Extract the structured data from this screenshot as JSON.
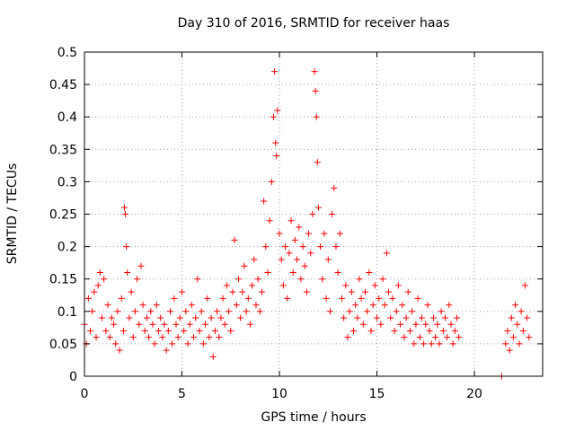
{
  "chart_data": {
    "type": "scatter",
    "title": "Day 310 of 2016, SRMTID for receiver haas",
    "xlabel": "GPS time / hours",
    "ylabel": "SRMTID / TECUs",
    "xlim": [
      0,
      23.5
    ],
    "ylim": [
      0,
      0.5
    ],
    "x_ticks": [
      0,
      5,
      10,
      15,
      20
    ],
    "x_tick_labels": [
      "0",
      "5",
      "10",
      "15",
      "20"
    ],
    "y_ticks": [
      0,
      0.05,
      0.1,
      0.15,
      0.2,
      0.25,
      0.3,
      0.35,
      0.4,
      0.45,
      0.5
    ],
    "y_tick_labels": [
      "0",
      "0.05",
      "0.1",
      "0.15",
      "0.2",
      "0.25",
      "0.3",
      "0.35",
      "0.4",
      "0.45",
      "0.5"
    ],
    "grid": true,
    "marker": "+",
    "marker_color": "#ff0000",
    "series": [
      {
        "name": "SRMTID",
        "points": [
          [
            0.0,
            0.08
          ],
          [
            0.1,
            0.05
          ],
          [
            0.2,
            0.12
          ],
          [
            0.3,
            0.07
          ],
          [
            0.4,
            0.1
          ],
          [
            0.5,
            0.13
          ],
          [
            0.6,
            0.06
          ],
          [
            0.7,
            0.14
          ],
          [
            0.8,
            0.16
          ],
          [
            0.9,
            0.09
          ],
          [
            1.0,
            0.15
          ],
          [
            1.1,
            0.07
          ],
          [
            1.2,
            0.11
          ],
          [
            1.3,
            0.06
          ],
          [
            1.4,
            0.09
          ],
          [
            1.5,
            0.08
          ],
          [
            1.6,
            0.05
          ],
          [
            1.7,
            0.1
          ],
          [
            1.8,
            0.04
          ],
          [
            1.9,
            0.12
          ],
          [
            2.0,
            0.07
          ],
          [
            2.05,
            0.26
          ],
          [
            2.1,
            0.25
          ],
          [
            2.15,
            0.2
          ],
          [
            2.2,
            0.16
          ],
          [
            2.3,
            0.09
          ],
          [
            2.4,
            0.13
          ],
          [
            2.5,
            0.06
          ],
          [
            2.6,
            0.1
          ],
          [
            2.7,
            0.15
          ],
          [
            2.8,
            0.08
          ],
          [
            2.9,
            0.17
          ],
          [
            3.0,
            0.11
          ],
          [
            3.1,
            0.07
          ],
          [
            3.2,
            0.09
          ],
          [
            3.3,
            0.06
          ],
          [
            3.4,
            0.1
          ],
          [
            3.5,
            0.08
          ],
          [
            3.6,
            0.05
          ],
          [
            3.7,
            0.11
          ],
          [
            3.8,
            0.07
          ],
          [
            3.9,
            0.09
          ],
          [
            4.0,
            0.06
          ],
          [
            4.1,
            0.08
          ],
          [
            4.2,
            0.04
          ],
          [
            4.3,
            0.07
          ],
          [
            4.4,
            0.1
          ],
          [
            4.5,
            0.05
          ],
          [
            4.6,
            0.12
          ],
          [
            4.7,
            0.08
          ],
          [
            4.8,
            0.06
          ],
          [
            4.9,
            0.09
          ],
          [
            5.0,
            0.13
          ],
          [
            5.1,
            0.07
          ],
          [
            5.2,
            0.1
          ],
          [
            5.3,
            0.05
          ],
          [
            5.4,
            0.08
          ],
          [
            5.5,
            0.11
          ],
          [
            5.6,
            0.06
          ],
          [
            5.7,
            0.09
          ],
          [
            5.8,
            0.15
          ],
          [
            5.9,
            0.07
          ],
          [
            6.0,
            0.1
          ],
          [
            6.1,
            0.05
          ],
          [
            6.2,
            0.08
          ],
          [
            6.3,
            0.12
          ],
          [
            6.4,
            0.06
          ],
          [
            6.5,
            0.09
          ],
          [
            6.6,
            0.03
          ],
          [
            6.7,
            0.07
          ],
          [
            6.8,
            0.1
          ],
          [
            6.9,
            0.06
          ],
          [
            7.0,
            0.09
          ],
          [
            7.1,
            0.12
          ],
          [
            7.2,
            0.08
          ],
          [
            7.3,
            0.14
          ],
          [
            7.4,
            0.1
          ],
          [
            7.5,
            0.07
          ],
          [
            7.6,
            0.13
          ],
          [
            7.7,
            0.21
          ],
          [
            7.8,
            0.11
          ],
          [
            7.9,
            0.15
          ],
          [
            8.0,
            0.09
          ],
          [
            8.1,
            0.13
          ],
          [
            8.2,
            0.17
          ],
          [
            8.3,
            0.1
          ],
          [
            8.4,
            0.12
          ],
          [
            8.5,
            0.08
          ],
          [
            8.6,
            0.14
          ],
          [
            8.7,
            0.18
          ],
          [
            8.8,
            0.11
          ],
          [
            8.9,
            0.15
          ],
          [
            9.0,
            0.1
          ],
          [
            9.1,
            0.13
          ],
          [
            9.2,
            0.27
          ],
          [
            9.3,
            0.2
          ],
          [
            9.4,
            0.16
          ],
          [
            9.5,
            0.24
          ],
          [
            9.6,
            0.3
          ],
          [
            9.7,
            0.4
          ],
          [
            9.75,
            0.47
          ],
          [
            9.8,
            0.36
          ],
          [
            9.85,
            0.34
          ],
          [
            9.9,
            0.41
          ],
          [
            10.0,
            0.22
          ],
          [
            10.1,
            0.18
          ],
          [
            10.2,
            0.14
          ],
          [
            10.3,
            0.2
          ],
          [
            10.4,
            0.12
          ],
          [
            10.5,
            0.19
          ],
          [
            10.6,
            0.24
          ],
          [
            10.7,
            0.16
          ],
          [
            10.8,
            0.21
          ],
          [
            10.9,
            0.18
          ],
          [
            11.0,
            0.23
          ],
          [
            11.1,
            0.15
          ],
          [
            11.2,
            0.2
          ],
          [
            11.3,
            0.17
          ],
          [
            11.4,
            0.13
          ],
          [
            11.5,
            0.22
          ],
          [
            11.6,
            0.19
          ],
          [
            11.7,
            0.25
          ],
          [
            11.8,
            0.47
          ],
          [
            11.85,
            0.44
          ],
          [
            11.9,
            0.4
          ],
          [
            11.95,
            0.33
          ],
          [
            12.0,
            0.26
          ],
          [
            12.1,
            0.2
          ],
          [
            12.2,
            0.15
          ],
          [
            12.3,
            0.22
          ],
          [
            12.4,
            0.12
          ],
          [
            12.5,
            0.18
          ],
          [
            12.6,
            0.1
          ],
          [
            12.7,
            0.25
          ],
          [
            12.8,
            0.29
          ],
          [
            12.9,
            0.2
          ],
          [
            13.0,
            0.16
          ],
          [
            13.1,
            0.22
          ],
          [
            13.2,
            0.12
          ],
          [
            13.3,
            0.09
          ],
          [
            13.4,
            0.14
          ],
          [
            13.5,
            0.06
          ],
          [
            13.6,
            0.1
          ],
          [
            13.7,
            0.13
          ],
          [
            13.8,
            0.07
          ],
          [
            13.9,
            0.11
          ],
          [
            14.0,
            0.09
          ],
          [
            14.1,
            0.15
          ],
          [
            14.2,
            0.12
          ],
          [
            14.3,
            0.08
          ],
          [
            14.4,
            0.13
          ],
          [
            14.5,
            0.1
          ],
          [
            14.6,
            0.16
          ],
          [
            14.7,
            0.07
          ],
          [
            14.8,
            0.11
          ],
          [
            14.9,
            0.14
          ],
          [
            15.0,
            0.09
          ],
          [
            15.1,
            0.12
          ],
          [
            15.2,
            0.08
          ],
          [
            15.3,
            0.15
          ],
          [
            15.4,
            0.11
          ],
          [
            15.5,
            0.19
          ],
          [
            15.6,
            0.13
          ],
          [
            15.7,
            0.09
          ],
          [
            15.8,
            0.12
          ],
          [
            15.9,
            0.07
          ],
          [
            16.0,
            0.1
          ],
          [
            16.1,
            0.14
          ],
          [
            16.2,
            0.08
          ],
          [
            16.3,
            0.11
          ],
          [
            16.4,
            0.06
          ],
          [
            16.5,
            0.09
          ],
          [
            16.6,
            0.13
          ],
          [
            16.7,
            0.07
          ],
          [
            16.8,
            0.1
          ],
          [
            16.9,
            0.05
          ],
          [
            17.0,
            0.08
          ],
          [
            17.1,
            0.12
          ],
          [
            17.2,
            0.06
          ],
          [
            17.3,
            0.09
          ],
          [
            17.4,
            0.05
          ],
          [
            17.5,
            0.08
          ],
          [
            17.6,
            0.11
          ],
          [
            17.7,
            0.07
          ],
          [
            17.8,
            0.05
          ],
          [
            17.9,
            0.09
          ],
          [
            18.0,
            0.06
          ],
          [
            18.1,
            0.08
          ],
          [
            18.2,
            0.05
          ],
          [
            18.3,
            0.1
          ],
          [
            18.4,
            0.07
          ],
          [
            18.5,
            0.09
          ],
          [
            18.6,
            0.06
          ],
          [
            18.7,
            0.11
          ],
          [
            18.8,
            0.08
          ],
          [
            18.9,
            0.05
          ],
          [
            19.0,
            0.07
          ],
          [
            19.1,
            0.09
          ],
          [
            19.2,
            0.06
          ],
          [
            21.4,
            0.0
          ],
          [
            21.6,
            0.05
          ],
          [
            21.7,
            0.07
          ],
          [
            21.8,
            0.04
          ],
          [
            21.9,
            0.09
          ],
          [
            22.0,
            0.06
          ],
          [
            22.1,
            0.11
          ],
          [
            22.2,
            0.08
          ],
          [
            22.3,
            0.05
          ],
          [
            22.4,
            0.1
          ],
          [
            22.5,
            0.07
          ],
          [
            22.6,
            0.14
          ],
          [
            22.7,
            0.09
          ],
          [
            22.8,
            0.06
          ]
        ]
      }
    ]
  }
}
